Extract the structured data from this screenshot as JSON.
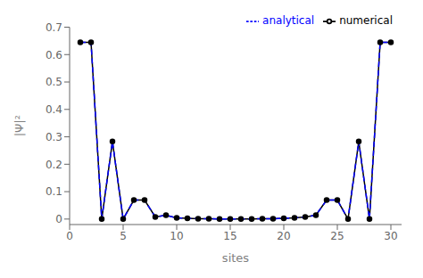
{
  "chart_data": {
    "type": "line",
    "xlabel": "sites",
    "ylabel": "|Ψ|²",
    "x": [
      1,
      2,
      3,
      4,
      5,
      6,
      7,
      8,
      9,
      10,
      11,
      12,
      13,
      14,
      15,
      16,
      17,
      18,
      19,
      20,
      21,
      22,
      23,
      24,
      25,
      26,
      27,
      28,
      29,
      30
    ],
    "series": [
      {
        "name": "numerical",
        "color": "black",
        "marker": "circle",
        "line_style": "solid",
        "values": [
          0.645,
          0.645,
          0.0,
          0.283,
          0.0,
          0.069,
          0.069,
          0.008,
          0.014,
          0.004,
          0.003,
          0.001,
          0.001,
          0.0005,
          0.0005,
          0.0005,
          0.0005,
          0.001,
          0.001,
          0.003,
          0.004,
          0.008,
          0.014,
          0.069,
          0.069,
          0.0,
          0.283,
          0.0,
          0.645,
          0.645
        ]
      },
      {
        "name": "analytical",
        "color": "blue",
        "marker": "none",
        "line_style": "dashed",
        "values": [
          0.645,
          0.645,
          0.0,
          0.283,
          0.0,
          0.069,
          0.069,
          0.008,
          0.014,
          0.004,
          0.003,
          0.001,
          0.001,
          0.0005,
          0.0005,
          0.0005,
          0.0005,
          0.001,
          0.001,
          0.003,
          0.004,
          0.008,
          0.014,
          0.069,
          0.069,
          0.0,
          0.283,
          0.0,
          0.645,
          0.645
        ]
      }
    ],
    "xlim": [
      0.0,
      31
    ],
    "xticks": [
      0,
      5,
      10,
      15,
      20,
      25,
      30
    ],
    "ylim": [
      -0.02,
      0.7
    ],
    "yticks": [
      0,
      0.1,
      0.2,
      0.3,
      0.4,
      0.5,
      0.6,
      0.7
    ],
    "grid": false,
    "legend": "upper right"
  }
}
